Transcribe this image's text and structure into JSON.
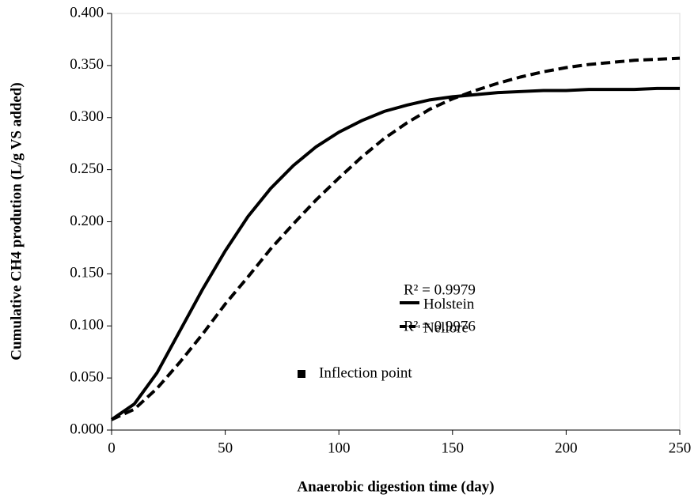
{
  "chart_data": {
    "type": "line",
    "xlabel": "Anaerobic digestion time (day)",
    "ylabel": "Cumulative CH4 prodution (L/g VS added)",
    "x": [
      0,
      10,
      20,
      30,
      40,
      50,
      60,
      70,
      80,
      90,
      100,
      110,
      120,
      130,
      140,
      150,
      160,
      170,
      180,
      190,
      200,
      210,
      220,
      230,
      240,
      250
    ],
    "series": [
      {
        "name": "Holstein",
        "color": "#000000",
        "dash": false,
        "values": [
          0.01,
          0.025,
          0.055,
          0.095,
          0.135,
          0.172,
          0.205,
          0.232,
          0.254,
          0.272,
          0.286,
          0.297,
          0.306,
          0.312,
          0.317,
          0.32,
          0.322,
          0.324,
          0.325,
          0.326,
          0.326,
          0.327,
          0.327,
          0.327,
          0.328,
          0.328
        ]
      },
      {
        "name": "Nellore",
        "color": "#000000",
        "dash": true,
        "values": [
          0.01,
          0.02,
          0.04,
          0.065,
          0.092,
          0.121,
          0.147,
          0.174,
          0.198,
          0.221,
          0.242,
          0.262,
          0.28,
          0.295,
          0.308,
          0.318,
          0.326,
          0.333,
          0.339,
          0.344,
          0.348,
          0.351,
          0.353,
          0.355,
          0.356,
          0.357
        ]
      }
    ],
    "annotations": [
      "R² = 0.9979",
      "R² = 0.9976"
    ],
    "marker_legend": "Inflection point",
    "xlim": [
      0,
      250
    ],
    "xticks": [
      0,
      50,
      100,
      150,
      200,
      250
    ],
    "ylim": [
      0,
      0.4
    ],
    "yticks": [
      {
        "value": 0,
        "label": "0.000"
      },
      {
        "value": 0.05,
        "label": "0.050"
      },
      {
        "value": 0.1,
        "label": "0.100"
      },
      {
        "value": 0.15,
        "label": "0.150"
      },
      {
        "value": 0.2,
        "label": "0.200"
      },
      {
        "value": 0.25,
        "label": "0.250"
      },
      {
        "value": 0.3,
        "label": "0.300"
      },
      {
        "value": 0.35,
        "label": "0.350"
      },
      {
        "value": 0.4,
        "label": "0.400"
      }
    ]
  }
}
